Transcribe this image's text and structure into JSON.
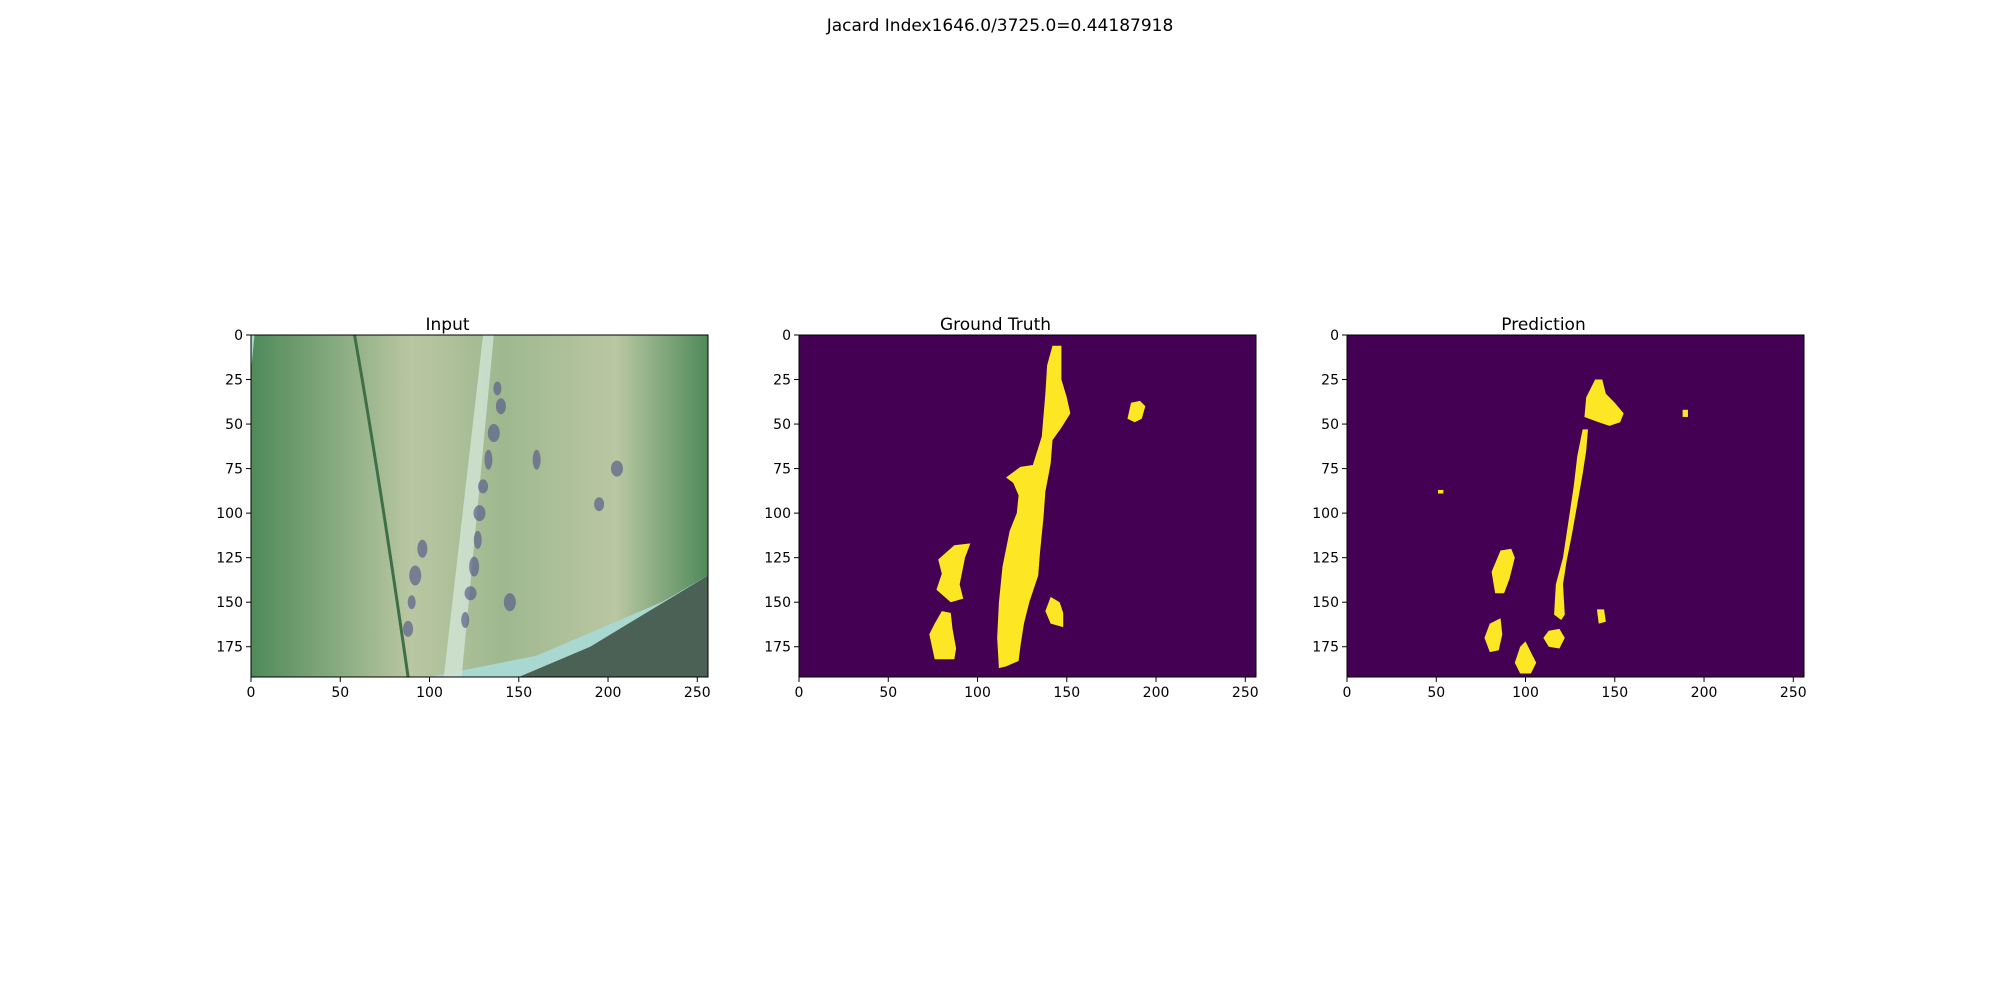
{
  "figure": {
    "suptitle": "Jacard Index1646.0/3725.0=0.44187918"
  },
  "colors": {
    "mask_background": "#440154",
    "mask_foreground": "#fde725",
    "leaf_dark": "#4f8a5a",
    "leaf_light": "#b9c7a2",
    "midrib": "#cfe3d2",
    "lesion": "#5a5f8a",
    "background_foliage": "#a8d8d0"
  },
  "chart_data": [
    {
      "type": "heatmap",
      "title": "Input",
      "content": "rgb-image",
      "xlim": [
        0,
        256
      ],
      "ylim": [
        192,
        0
      ],
      "xticks": [
        "0",
        "50",
        "100",
        "150",
        "200",
        "250"
      ],
      "yticks": [
        "0",
        "25",
        "50",
        "75",
        "100",
        "125",
        "150",
        "175"
      ]
    },
    {
      "type": "heatmap",
      "title": "Ground Truth",
      "content": "binary-mask",
      "xlim": [
        0,
        256
      ],
      "ylim": [
        192,
        0
      ],
      "xticks": [
        "0",
        "50",
        "100",
        "150",
        "200",
        "250"
      ],
      "yticks": [
        "0",
        "25",
        "50",
        "75",
        "100",
        "125",
        "150",
        "175"
      ],
      "regions": [
        [
          [
            142,
            6
          ],
          [
            147,
            6
          ],
          [
            147,
            25
          ],
          [
            150,
            35
          ],
          [
            152,
            44
          ],
          [
            147,
            52
          ],
          [
            142,
            59
          ],
          [
            141,
            72
          ],
          [
            138,
            88
          ],
          [
            137,
            102
          ],
          [
            135,
            122
          ],
          [
            134,
            135
          ],
          [
            129,
            150
          ],
          [
            126,
            162
          ],
          [
            124,
            175
          ],
          [
            123,
            183
          ],
          [
            116,
            186
          ],
          [
            112,
            187
          ],
          [
            111,
            170
          ],
          [
            112,
            150
          ],
          [
            114,
            130
          ],
          [
            118,
            110
          ],
          [
            122,
            100
          ],
          [
            123,
            90
          ],
          [
            120,
            83
          ],
          [
            116,
            80
          ],
          [
            124,
            74
          ],
          [
            131,
            73
          ],
          [
            136,
            57
          ],
          [
            138,
            33
          ],
          [
            139,
            17
          ]
        ],
        [
          [
            186,
            38
          ],
          [
            191,
            37
          ],
          [
            194,
            40
          ],
          [
            192,
            47
          ],
          [
            188,
            49
          ],
          [
            184,
            47
          ]
        ],
        [
          [
            78,
            126
          ],
          [
            87,
            118
          ],
          [
            96,
            117
          ],
          [
            93,
            125
          ],
          [
            90,
            140
          ],
          [
            92,
            148
          ],
          [
            85,
            150
          ],
          [
            77,
            143
          ],
          [
            80,
            134
          ]
        ],
        [
          [
            80,
            155
          ],
          [
            85,
            156
          ],
          [
            86,
            165
          ],
          [
            88,
            176
          ],
          [
            87,
            182
          ],
          [
            76,
            182
          ],
          [
            73,
            168
          ],
          [
            76,
            162
          ]
        ],
        [
          [
            141,
            147
          ],
          [
            146,
            150
          ],
          [
            148,
            156
          ],
          [
            148,
            164
          ],
          [
            141,
            162
          ],
          [
            138,
            155
          ]
        ]
      ]
    },
    {
      "type": "heatmap",
      "title": "Prediction",
      "content": "binary-mask",
      "xlim": [
        0,
        256
      ],
      "ylim": [
        192,
        0
      ],
      "xticks": [
        "0",
        "50",
        "100",
        "150",
        "200",
        "250"
      ],
      "yticks": [
        "0",
        "25",
        "50",
        "75",
        "100",
        "125",
        "150",
        "175"
      ],
      "regions": [
        [
          [
            139,
            25
          ],
          [
            143,
            25
          ],
          [
            145,
            33
          ],
          [
            150,
            38
          ],
          [
            155,
            44
          ],
          [
            153,
            49
          ],
          [
            147,
            51
          ],
          [
            141,
            49
          ],
          [
            133,
            46
          ],
          [
            134,
            35
          ]
        ],
        [
          [
            132,
            53
          ],
          [
            135,
            53
          ],
          [
            134,
            65
          ],
          [
            132,
            78
          ],
          [
            129,
            95
          ],
          [
            126,
            112
          ],
          [
            123,
            127
          ],
          [
            121,
            140
          ],
          [
            122,
            157
          ],
          [
            120,
            160
          ],
          [
            116,
            157
          ],
          [
            117,
            140
          ],
          [
            121,
            125
          ],
          [
            124,
            105
          ],
          [
            127,
            85
          ],
          [
            129,
            68
          ]
        ],
        [
          [
            188,
            42
          ],
          [
            191,
            42
          ],
          [
            191,
            46
          ],
          [
            188,
            46
          ]
        ],
        [
          [
            51,
            87
          ],
          [
            54,
            87
          ],
          [
            54,
            89
          ],
          [
            51,
            89
          ]
        ],
        [
          [
            86,
            121
          ],
          [
            92,
            120
          ],
          [
            94,
            125
          ],
          [
            91,
            137
          ],
          [
            88,
            145
          ],
          [
            83,
            145
          ],
          [
            81,
            133
          ]
        ],
        [
          [
            140,
            154
          ],
          [
            144,
            154
          ],
          [
            145,
            161
          ],
          [
            141,
            162
          ]
        ],
        [
          [
            80,
            162
          ],
          [
            86,
            159
          ],
          [
            87,
            168
          ],
          [
            85,
            177
          ],
          [
            80,
            178
          ],
          [
            77,
            170
          ]
        ],
        [
          [
            113,
            166
          ],
          [
            119,
            165
          ],
          [
            122,
            170
          ],
          [
            119,
            176
          ],
          [
            113,
            175
          ],
          [
            110,
            170
          ]
        ],
        [
          [
            97,
            175
          ],
          [
            100,
            172
          ],
          [
            103,
            178
          ],
          [
            106,
            184
          ],
          [
            103,
            190
          ],
          [
            97,
            190
          ],
          [
            94,
            184
          ]
        ]
      ]
    }
  ]
}
